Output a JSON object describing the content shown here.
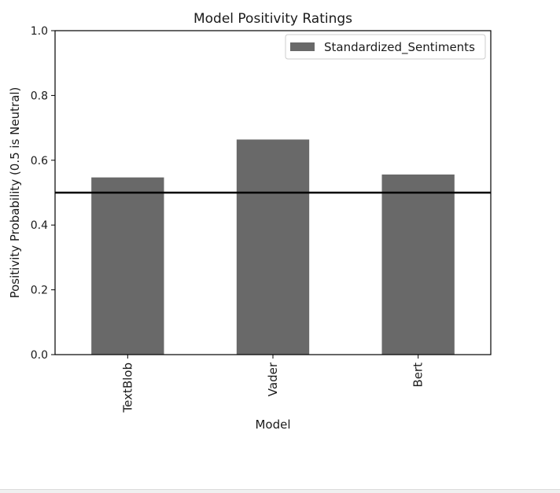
{
  "chart_data": {
    "type": "bar",
    "title": "Model Positivity Ratings",
    "xlabel": "Model",
    "ylabel": "Positivity Probability (0.5 is Neutral)",
    "categories": [
      "TextBlob",
      "Vader",
      "Bert"
    ],
    "series": [
      {
        "name": "Standardized_Sentiments",
        "values": [
          0.547,
          0.664,
          0.556
        ],
        "color": "#696969"
      }
    ],
    "ylim": [
      0.0,
      1.0
    ],
    "yticks": [
      "0.0",
      "0.2",
      "0.4",
      "0.6",
      "0.8",
      "1.0"
    ],
    "reference_line": {
      "y": 0.5,
      "color": "#000000"
    },
    "legend": {
      "position": "top-right"
    },
    "grid": false
  }
}
